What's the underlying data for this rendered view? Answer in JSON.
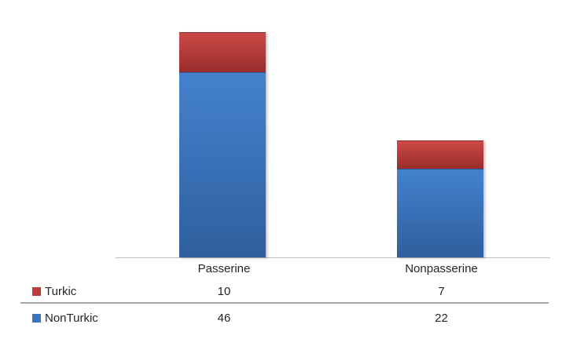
{
  "chart_data": {
    "type": "bar",
    "stacked": true,
    "orientation": "vertical",
    "title": "",
    "xlabel": "",
    "ylabel": "",
    "categories": [
      "Passerine",
      "Nonpasserine"
    ],
    "series": [
      {
        "name": "Turkic",
        "values": [
          10,
          7
        ],
        "color": "#BE3B3B",
        "gradient_top": "#CC4A47",
        "gradient_bottom": "#992C2C",
        "border_color": "#8E2A2A"
      },
      {
        "name": "NonTurkic",
        "values": [
          46,
          22
        ],
        "color": "#3A76C0",
        "gradient_top": "#4482CE",
        "gradient_bottom": "#2F5F9E",
        "border_color": "#2A5B96"
      }
    ],
    "ylim": [
      0,
      60
    ],
    "grid": false,
    "legend_position": "data-table-left",
    "data_table": true,
    "axis_line_color": "#BFBFBF",
    "table_separator_color": "#A6A6A6"
  }
}
